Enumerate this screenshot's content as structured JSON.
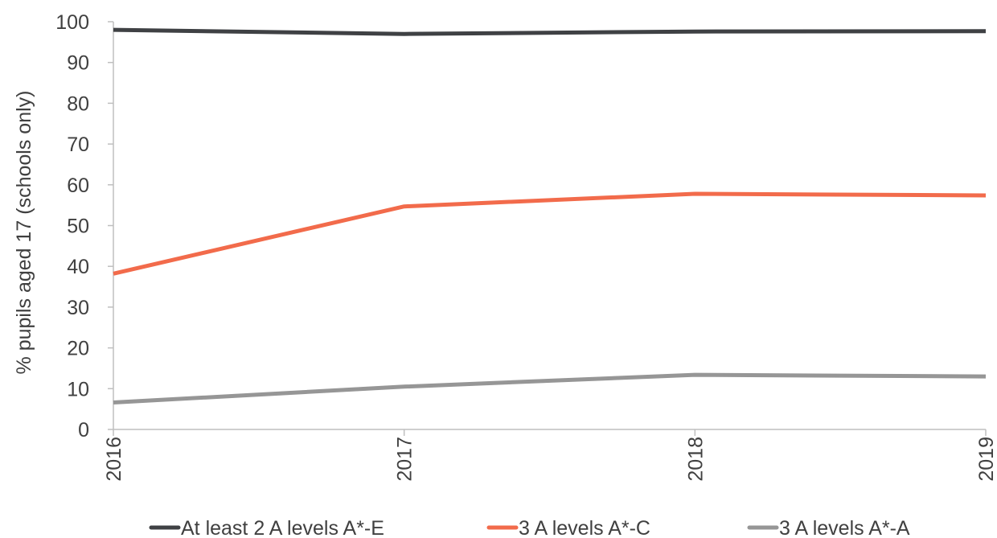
{
  "chart_data": {
    "type": "line",
    "ylabel": "% pupils aged 17 (schools only)",
    "xlabel": "",
    "x": [
      "2016",
      "2017",
      "2018",
      "2019"
    ],
    "ylim": [
      0,
      100
    ],
    "yticks": [
      0,
      10,
      20,
      30,
      40,
      50,
      60,
      70,
      80,
      90,
      100
    ],
    "grid": false,
    "legend_position": "bottom",
    "series": [
      {
        "name": "At least 2 A levels A*-E",
        "color": "#3f4144",
        "values": [
          98,
          97,
          97.6,
          97.7
        ]
      },
      {
        "name": "3 A levels A*-C",
        "color": "#f26b4b",
        "values": [
          38.2,
          54.7,
          57.8,
          57.4
        ]
      },
      {
        "name": "3 A levels A*-A",
        "color": "#969696",
        "values": [
          6.6,
          10.5,
          13.4,
          13.0
        ]
      }
    ]
  }
}
